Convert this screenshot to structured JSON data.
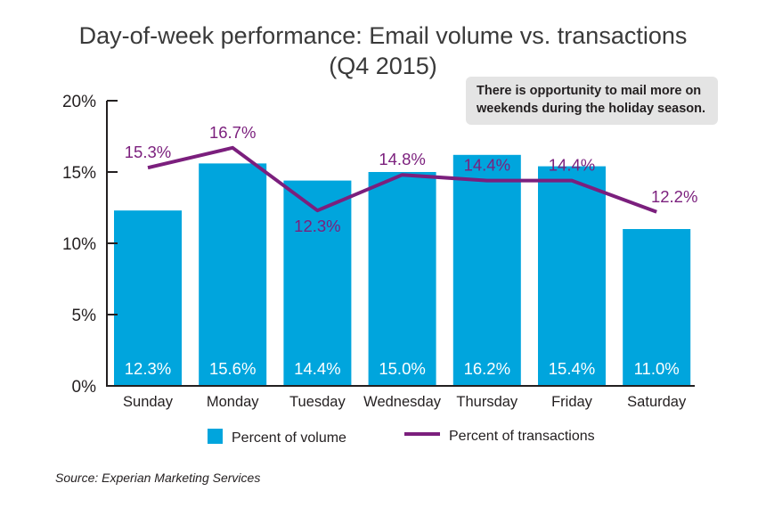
{
  "chart_data": {
    "type": "bar",
    "title": "Day-of-week performance: Email volume vs. transactions",
    "subtitle": "(Q4 2015)",
    "categories": [
      "Sunday",
      "Monday",
      "Tuesday",
      "Wednesday",
      "Thursday",
      "Friday",
      "Saturday"
    ],
    "series": [
      {
        "name": "Percent of volume",
        "type": "bar",
        "color": "#00a5dd",
        "values": [
          12.3,
          15.6,
          14.4,
          15.0,
          16.2,
          15.4,
          11.0
        ],
        "labels": [
          "12.3%",
          "15.6%",
          "14.4%",
          "15.0%",
          "16.2%",
          "15.4%",
          "11.0%"
        ]
      },
      {
        "name": "Percent of transactions",
        "type": "line",
        "color": "#7b1f7d",
        "values": [
          15.3,
          16.7,
          12.3,
          14.8,
          14.4,
          14.4,
          12.2
        ],
        "labels": [
          "15.3%",
          "16.7%",
          "12.3%",
          "14.8%",
          "14.4%",
          "14.4%",
          "12.2%"
        ]
      }
    ],
    "ylim": [
      0,
      20
    ],
    "yticks": [
      0,
      5,
      10,
      15,
      20
    ],
    "ytick_labels": [
      "0%",
      "5%",
      "10%",
      "15%",
      "20%"
    ],
    "grid": false,
    "legend_position": "bottom",
    "annotation": "There is opportunity to mail more on weekends during the holiday season.",
    "annotation_lines": [
      "There is opportunity to mail more on",
      "weekends during the holiday season."
    ]
  },
  "legend": {
    "volume_label": "Percent of volume",
    "transactions_label": "Percent of transactions"
  },
  "source": "Source: Experian Marketing Services"
}
